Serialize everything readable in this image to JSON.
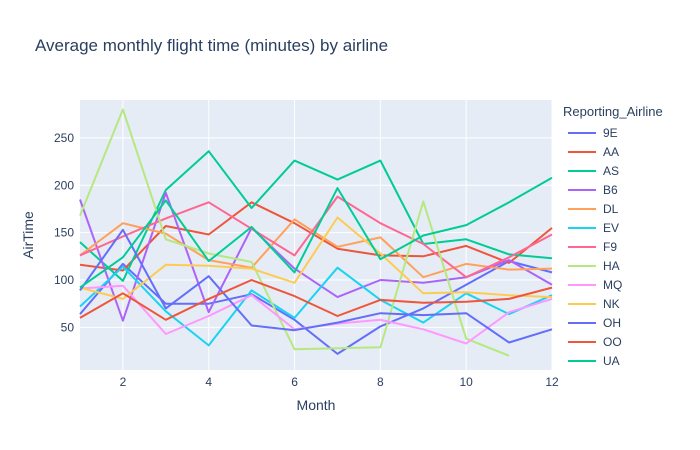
{
  "chart_data": {
    "type": "line",
    "title": "Average monthly flight time (minutes) by airline",
    "xlabel": "Month",
    "ylabel": "AirTime",
    "xlim": [
      1,
      12
    ],
    "ylim": [
      5,
      290
    ],
    "xticks": [
      2,
      4,
      6,
      8,
      10,
      12
    ],
    "yticks": [
      50,
      100,
      150,
      200,
      250
    ],
    "grid": true,
    "legend_title": "Reporting_Airline",
    "legend_position": "right",
    "series": [
      {
        "name": "9E",
        "color": "#636efa",
        "x": [
          1,
          2,
          3,
          4,
          5,
          6,
          7,
          8,
          9,
          10,
          11,
          12
        ],
        "values": [
          64,
          117,
          75,
          75,
          85,
          58,
          22,
          51,
          70,
          95,
          120,
          108
        ]
      },
      {
        "name": "AA",
        "color": "#EF553B",
        "x": [
          1,
          2,
          3,
          4,
          5,
          6,
          7,
          8,
          9,
          10,
          11,
          12
        ],
        "values": [
          116,
          110,
          157,
          148,
          182,
          160,
          133,
          126,
          125,
          136,
          118,
          155
        ]
      },
      {
        "name": "AS",
        "color": "#00cc96",
        "x": [
          1,
          2,
          3,
          4,
          5,
          6,
          7,
          8,
          9,
          10,
          11,
          12
        ],
        "values": [
          140,
          99,
          195,
          236,
          176,
          226,
          206,
          226,
          138,
          143,
          127,
          123
        ]
      },
      {
        "name": "B6",
        "color": "#ab63fa",
        "x": [
          1,
          2,
          3,
          4,
          5,
          6,
          7,
          8,
          9,
          10,
          11,
          12
        ],
        "values": [
          185,
          57,
          192,
          66,
          155,
          112,
          82,
          100,
          97,
          103,
          121,
          95
        ]
      },
      {
        "name": "DL",
        "color": "#FFA15A",
        "x": [
          1,
          2,
          3,
          4,
          5,
          6,
          7,
          8,
          9,
          10,
          11,
          12
        ],
        "values": [
          126,
          160,
          149,
          121,
          113,
          164,
          135,
          145,
          103,
          117,
          111,
          112
        ]
      },
      {
        "name": "EV",
        "color": "#19d3f3",
        "x": [
          1,
          2,
          3,
          4,
          5,
          6,
          7,
          8,
          9,
          10,
          11,
          12
        ],
        "values": [
          72,
          114,
          67,
          31,
          89,
          60,
          113,
          79,
          55,
          86,
          64,
          84
        ]
      },
      {
        "name": "F9",
        "color": "#FF6692",
        "x": [
          1,
          2,
          3,
          4,
          5,
          6,
          7,
          8,
          9,
          10,
          11,
          12
        ],
        "values": [
          126,
          146,
          165,
          182,
          154,
          126,
          188,
          160,
          138,
          103,
          124,
          148
        ]
      },
      {
        "name": "HA",
        "color": "#B6E880",
        "x": [
          1,
          2,
          3,
          4,
          5,
          6,
          7,
          8,
          9,
          10,
          11
        ],
        "values": [
          168,
          280,
          143,
          128,
          119,
          27,
          28,
          29,
          183,
          38,
          20
        ]
      },
      {
        "name": "MQ",
        "color": "#FF97FF",
        "x": [
          1,
          2,
          3,
          4,
          5,
          6,
          7,
          8,
          9,
          10,
          11,
          12
        ],
        "values": [
          91,
          94,
          43,
          62,
          84,
          48,
          54,
          58,
          48,
          33,
          66,
          80
        ]
      },
      {
        "name": "NK",
        "color": "#FECB52",
        "x": [
          1,
          2,
          3,
          4,
          5,
          6,
          7,
          8,
          9,
          10,
          11,
          12
        ],
        "values": [
          92,
          80,
          116,
          115,
          112,
          97,
          166,
          128,
          86,
          87,
          84,
          82
        ]
      },
      {
        "name": "OH",
        "color": "#636efa",
        "x": [
          1,
          2,
          3,
          4,
          5,
          6,
          7,
          8,
          9,
          10,
          11,
          12
        ],
        "values": [
          89,
          153,
          70,
          104,
          52,
          47,
          55,
          65,
          63,
          65,
          34,
          48
        ]
      },
      {
        "name": "OO",
        "color": "#EF553B",
        "x": [
          1,
          2,
          3,
          4,
          5,
          6,
          7,
          8,
          9,
          10,
          11,
          12
        ],
        "values": [
          60,
          86,
          58,
          80,
          100,
          83,
          62,
          79,
          76,
          77,
          80,
          92
        ]
      },
      {
        "name": "UA",
        "color": "#00cc96",
        "x": [
          1,
          2,
          3,
          4,
          5,
          6,
          7,
          8,
          9,
          10,
          11,
          12
        ],
        "values": [
          92,
          124,
          184,
          120,
          156,
          108,
          197,
          122,
          147,
          158,
          182,
          208
        ]
      }
    ]
  }
}
